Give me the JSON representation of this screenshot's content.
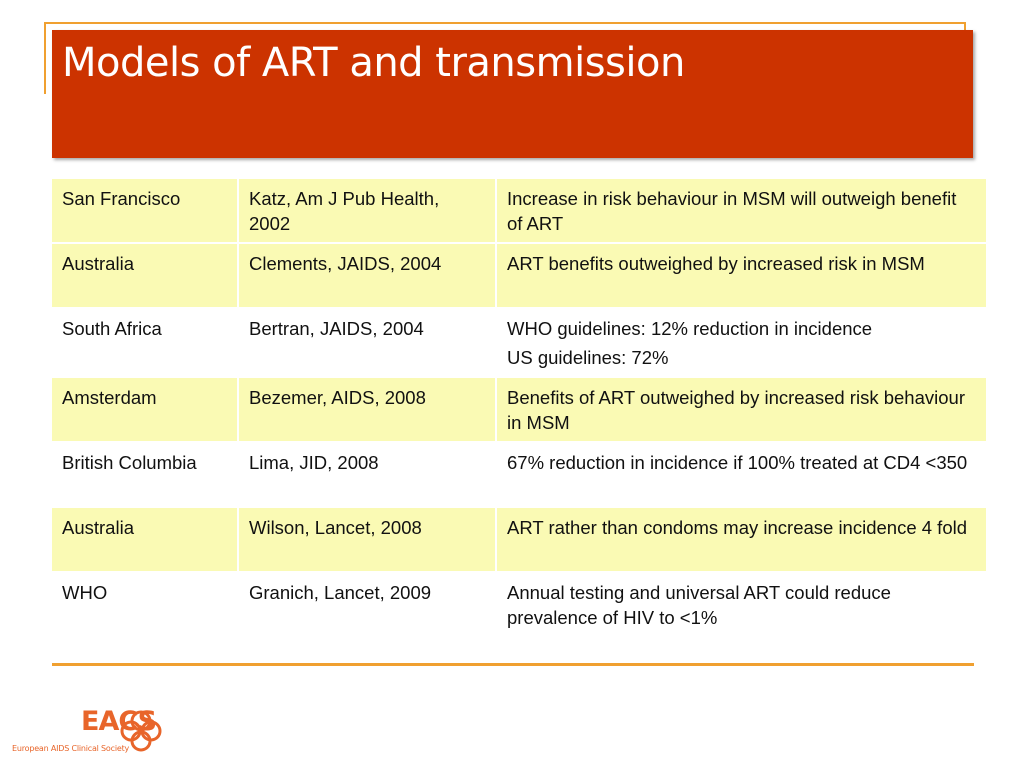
{
  "slide": {
    "title": "Models of ART and transmission"
  },
  "table": {
    "rows": [
      {
        "location": "San Francisco",
        "study": "Katz, Am J Pub Health, 2002",
        "finding": "Increase in risk behaviour in MSM will outweigh benefit of ART"
      },
      {
        "location": "Australia",
        "study": "Clements, JAIDS, 2004",
        "finding": "ART benefits outweighed by increased risk in MSM"
      },
      {
        "location": "South Africa",
        "study": "Bertran, JAIDS, 2004",
        "finding": "WHO guidelines: 12% reduction in incidence",
        "finding_2": "US guidelines: 72%"
      },
      {
        "location": "Amsterdam",
        "study": "Bezemer, AIDS, 2008",
        "finding": "Benefits of ART outweighed by increased risk behaviour in MSM"
      },
      {
        "location": "British Columbia",
        "study": "Lima, JID, 2008",
        "finding": "67% reduction in incidence if 100% treated at CD4 <350"
      },
      {
        "location": "Australia",
        "study": "Wilson, Lancet, 2008",
        "finding": "ART rather than condoms may increase incidence 4 fold"
      },
      {
        "location": "WHO",
        "study": "Granich, Lancet, 2009",
        "finding": "Annual testing and universal ART could reduce prevalence of HIV to <1%"
      }
    ]
  },
  "logo": {
    "name": "EACS",
    "subtitle": "European AIDS Clinical Society"
  },
  "colors": {
    "title_band": "#cc3300",
    "accent_rule": "#f0a030",
    "row_shade": "#fafab4",
    "logo": "#e8652a"
  }
}
